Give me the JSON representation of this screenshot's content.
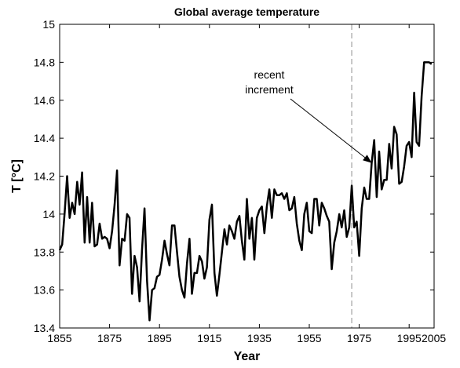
{
  "chart_data": {
    "type": "line",
    "title": "Global average temperature",
    "xlabel": "Year",
    "ylabel": "T [°C]",
    "xlim": [
      1855,
      2005
    ],
    "ylim": [
      13.4,
      15.0
    ],
    "xticks": [
      1855,
      1875,
      1895,
      1915,
      1935,
      1955,
      1975,
      1995,
      2005
    ],
    "yticks": [
      13.4,
      13.6,
      13.8,
      14.0,
      14.2,
      14.4,
      14.6,
      14.8,
      15.0
    ],
    "ytick_labels": [
      "13.4",
      "13.6",
      "13.8",
      "14",
      "14.2",
      "14.4",
      "14.6",
      "14.8",
      "15"
    ],
    "grid": false,
    "line_color": "#000000",
    "reference_line": {
      "x": 1972,
      "style": "dashed",
      "color": "#a0a0a0"
    },
    "annotation": {
      "lines": [
        "recent",
        "increment"
      ],
      "arrow_target": {
        "x": 1980,
        "y": 14.27
      }
    },
    "series": [
      {
        "x": [
          1855,
          1856,
          1857,
          1858,
          1859,
          1860,
          1861,
          1862,
          1863,
          1864,
          1865,
          1866,
          1867,
          1868,
          1869,
          1870,
          1871,
          1872,
          1873,
          1874,
          1875,
          1876,
          1877,
          1878,
          1879,
          1880,
          1881,
          1882,
          1883,
          1884,
          1885,
          1886,
          1887,
          1888,
          1889,
          1890,
          1891,
          1892,
          1893,
          1894,
          1895,
          1896,
          1897,
          1898,
          1899,
          1900,
          1901,
          1902,
          1903,
          1904,
          1905,
          1906,
          1907,
          1908,
          1909,
          1910,
          1911,
          1912,
          1913,
          1914,
          1915,
          1916,
          1917,
          1918,
          1919,
          1920,
          1921,
          1922,
          1923,
          1924,
          1925,
          1926,
          1927,
          1928,
          1929,
          1930,
          1931,
          1932,
          1933,
          1934,
          1935,
          1936,
          1937,
          1938,
          1939,
          1940,
          1941,
          1942,
          1943,
          1944,
          1945,
          1946,
          1947,
          1948,
          1949,
          1950,
          1951,
          1952,
          1953,
          1954,
          1955,
          1956,
          1957,
          1958,
          1959,
          1960,
          1961,
          1962,
          1963,
          1964,
          1965,
          1966,
          1967,
          1968,
          1969,
          1970,
          1971,
          1972,
          1973,
          1974,
          1975,
          1976,
          1977,
          1978,
          1979,
          1980,
          1981,
          1982,
          1983,
          1984,
          1985,
          1986,
          1987,
          1988,
          1989,
          1990,
          1991,
          1992,
          1993,
          1994,
          1995,
          1996,
          1997,
          1998,
          1999,
          2000,
          2001,
          2002,
          2003,
          2004
        ],
        "values": [
          13.81,
          13.84,
          14.01,
          14.2,
          13.98,
          14.06,
          14.0,
          14.17,
          14.05,
          14.22,
          13.85,
          14.09,
          13.85,
          14.06,
          13.83,
          13.84,
          13.95,
          13.87,
          13.88,
          13.87,
          13.82,
          13.91,
          14.05,
          14.23,
          13.73,
          13.87,
          13.86,
          14.0,
          13.98,
          13.58,
          13.78,
          13.72,
          13.54,
          13.81,
          14.03,
          13.65,
          13.44,
          13.6,
          13.61,
          13.67,
          13.68,
          13.76,
          13.86,
          13.79,
          13.73,
          13.94,
          13.94,
          13.8,
          13.67,
          13.6,
          13.56,
          13.74,
          13.87,
          13.58,
          13.69,
          13.69,
          13.78,
          13.75,
          13.66,
          13.72,
          13.97,
          14.05,
          13.69,
          13.57,
          13.68,
          13.8,
          13.92,
          13.84,
          13.94,
          13.91,
          13.87,
          13.96,
          13.99,
          13.86,
          13.76,
          14.08,
          13.87,
          13.98,
          13.76,
          13.98,
          14.02,
          14.04,
          13.9,
          14.04,
          14.13,
          13.98,
          14.13,
          14.1,
          14.1,
          14.11,
          14.08,
          14.11,
          14.02,
          14.03,
          14.09,
          13.95,
          13.86,
          13.81,
          14.0,
          14.06,
          13.91,
          13.9,
          14.08,
          14.08,
          13.94,
          14.06,
          14.03,
          13.99,
          13.96,
          13.71,
          13.85,
          13.91,
          14.0,
          13.93,
          14.02,
          13.88,
          13.93,
          14.15,
          13.93,
          13.96,
          13.78,
          14.03,
          14.14,
          14.08,
          14.08,
          14.27,
          14.39,
          14.09,
          14.33,
          14.13,
          14.18,
          14.18,
          14.37,
          14.24,
          14.46,
          14.42,
          14.16,
          14.17,
          14.25,
          14.36,
          14.38,
          14.3,
          14.64,
          14.38,
          14.36,
          14.62,
          14.8,
          14.8,
          14.8,
          14.79
        ]
      }
    ]
  }
}
